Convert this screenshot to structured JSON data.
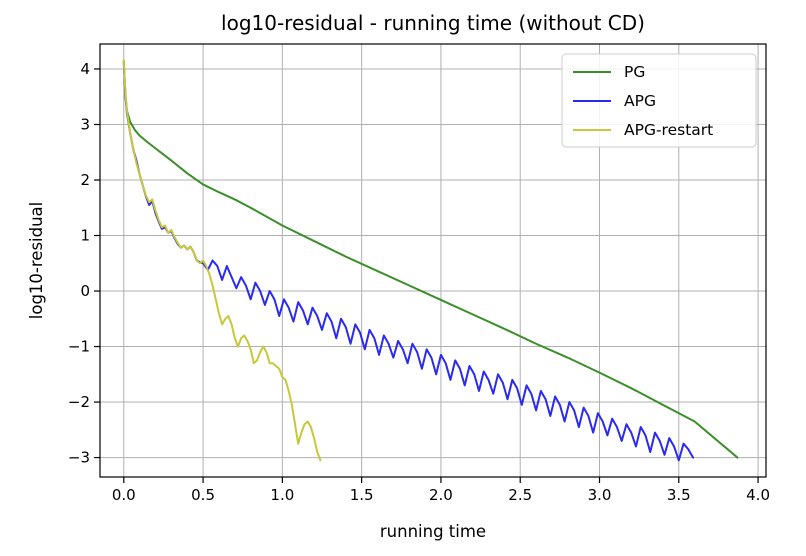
{
  "chart_data": {
    "type": "line",
    "title": "log10-residual - running time (without CD)",
    "xlabel": "running time",
    "ylabel": "log10-residual",
    "xlim": [
      -0.15,
      4.05
    ],
    "ylim": [
      -3.35,
      4.45
    ],
    "xticks": [
      0.0,
      0.5,
      1.0,
      1.5,
      2.0,
      2.5,
      3.0,
      3.5,
      4.0
    ],
    "xtick_labels": [
      "0.0",
      "0.5",
      "1.0",
      "1.5",
      "2.0",
      "2.5",
      "3.0",
      "3.5",
      "4.0"
    ],
    "yticks": [
      -3,
      -2,
      -1,
      0,
      1,
      2,
      3,
      4
    ],
    "ytick_labels": [
      "−3",
      "−2",
      "−1",
      "0",
      "1",
      "2",
      "3",
      "4"
    ],
    "grid": true,
    "legend": "top-right",
    "series": [
      {
        "name": "PG",
        "color": "#3a8f2a",
        "x": [
          0.0,
          0.01,
          0.02,
          0.04,
          0.07,
          0.1,
          0.15,
          0.2,
          0.3,
          0.4,
          0.5,
          0.6,
          0.7,
          0.8,
          1.0,
          1.2,
          1.4,
          1.6,
          1.8,
          2.0,
          2.2,
          2.4,
          2.6,
          2.8,
          3.0,
          3.2,
          3.4,
          3.6,
          3.87
        ],
        "y": [
          4.15,
          3.5,
          3.25,
          3.05,
          2.9,
          2.8,
          2.68,
          2.57,
          2.35,
          2.12,
          1.92,
          1.78,
          1.65,
          1.5,
          1.18,
          0.9,
          0.62,
          0.36,
          0.1,
          -0.16,
          -0.42,
          -0.68,
          -0.95,
          -1.2,
          -1.47,
          -1.75,
          -2.05,
          -2.35,
          -3.0
        ]
      },
      {
        "name": "APG",
        "color": "#2a2af0",
        "x": [
          0.0,
          0.01,
          0.02,
          0.04,
          0.06,
          0.08,
          0.1,
          0.12,
          0.14,
          0.16,
          0.18,
          0.2,
          0.22,
          0.24,
          0.26,
          0.28,
          0.3,
          0.32,
          0.34,
          0.36,
          0.38,
          0.4,
          0.42,
          0.44,
          0.46,
          0.48,
          0.5,
          0.53,
          0.56,
          0.59,
          0.62,
          0.65,
          0.68,
          0.71,
          0.74,
          0.77,
          0.8,
          0.83,
          0.86,
          0.89,
          0.92,
          0.95,
          0.98,
          1.01,
          1.04,
          1.07,
          1.1,
          1.13,
          1.16,
          1.19,
          1.22,
          1.25,
          1.28,
          1.31,
          1.34,
          1.37,
          1.4,
          1.43,
          1.46,
          1.49,
          1.52,
          1.55,
          1.58,
          1.61,
          1.64,
          1.67,
          1.7,
          1.73,
          1.76,
          1.79,
          1.82,
          1.85,
          1.88,
          1.91,
          1.94,
          1.97,
          2.0,
          2.03,
          2.06,
          2.09,
          2.12,
          2.15,
          2.18,
          2.21,
          2.24,
          2.27,
          2.3,
          2.33,
          2.36,
          2.39,
          2.42,
          2.45,
          2.48,
          2.51,
          2.54,
          2.57,
          2.6,
          2.63,
          2.66,
          2.69,
          2.72,
          2.75,
          2.78,
          2.81,
          2.84,
          2.87,
          2.9,
          2.93,
          2.96,
          2.99,
          3.02,
          3.05,
          3.08,
          3.11,
          3.14,
          3.17,
          3.2,
          3.23,
          3.26,
          3.29,
          3.32,
          3.35,
          3.38,
          3.41,
          3.44,
          3.47,
          3.5,
          3.53,
          3.56,
          3.59
        ],
        "y": [
          4.1,
          3.55,
          3.2,
          2.85,
          2.55,
          2.35,
          2.1,
          1.9,
          1.7,
          1.55,
          1.62,
          1.4,
          1.25,
          1.12,
          1.15,
          1.05,
          1.08,
          0.95,
          0.85,
          0.78,
          0.82,
          0.75,
          0.8,
          0.7,
          0.55,
          0.52,
          0.5,
          0.38,
          0.55,
          0.45,
          0.2,
          0.45,
          0.25,
          0.05,
          0.25,
          0.1,
          -0.15,
          0.15,
          0.0,
          -0.25,
          0.0,
          -0.15,
          -0.45,
          -0.15,
          -0.3,
          -0.55,
          -0.2,
          -0.35,
          -0.6,
          -0.3,
          -0.45,
          -0.7,
          -0.4,
          -0.55,
          -0.85,
          -0.5,
          -0.65,
          -0.95,
          -0.6,
          -0.75,
          -1.05,
          -0.7,
          -0.85,
          -1.15,
          -0.8,
          -0.95,
          -1.2,
          -0.9,
          -1.05,
          -1.3,
          -0.95,
          -1.1,
          -1.4,
          -1.05,
          -1.2,
          -1.5,
          -1.15,
          -1.3,
          -1.6,
          -1.25,
          -1.4,
          -1.7,
          -1.35,
          -1.5,
          -1.8,
          -1.45,
          -1.6,
          -1.85,
          -1.5,
          -1.65,
          -1.95,
          -1.6,
          -1.75,
          -2.05,
          -1.7,
          -1.85,
          -2.15,
          -1.8,
          -1.95,
          -2.25,
          -1.9,
          -2.05,
          -2.35,
          -2.0,
          -2.15,
          -2.45,
          -2.1,
          -2.25,
          -2.55,
          -2.2,
          -2.35,
          -2.6,
          -2.3,
          -2.45,
          -2.7,
          -2.4,
          -2.55,
          -2.8,
          -2.45,
          -2.6,
          -2.9,
          -2.55,
          -2.7,
          -2.95,
          -2.65,
          -2.8,
          -3.05,
          -2.75,
          -2.85,
          -3.0
        ]
      },
      {
        "name": "APG-restart",
        "color": "#c8c83c",
        "x": [
          0.0,
          0.01,
          0.02,
          0.04,
          0.06,
          0.08,
          0.1,
          0.12,
          0.14,
          0.16,
          0.18,
          0.2,
          0.22,
          0.24,
          0.26,
          0.28,
          0.3,
          0.32,
          0.34,
          0.36,
          0.38,
          0.4,
          0.42,
          0.44,
          0.46,
          0.48,
          0.5,
          0.52,
          0.54,
          0.56,
          0.58,
          0.6,
          0.62,
          0.64,
          0.66,
          0.68,
          0.7,
          0.72,
          0.74,
          0.76,
          0.78,
          0.8,
          0.82,
          0.84,
          0.86,
          0.88,
          0.9,
          0.92,
          0.94,
          0.96,
          0.98,
          1.0,
          1.02,
          1.04,
          1.06,
          1.08,
          1.1,
          1.12,
          1.14,
          1.16,
          1.18,
          1.2,
          1.22,
          1.24
        ],
        "y": [
          4.15,
          3.6,
          3.25,
          2.85,
          2.55,
          2.3,
          2.1,
          1.9,
          1.72,
          1.6,
          1.65,
          1.45,
          1.28,
          1.15,
          1.18,
          1.05,
          1.1,
          0.97,
          0.87,
          0.78,
          0.82,
          0.75,
          0.8,
          0.7,
          0.55,
          0.5,
          0.55,
          0.45,
          0.3,
          0.1,
          -0.15,
          -0.4,
          -0.6,
          -0.5,
          -0.45,
          -0.6,
          -0.85,
          -1.0,
          -0.85,
          -0.8,
          -0.9,
          -1.05,
          -1.3,
          -1.25,
          -1.1,
          -1.0,
          -1.1,
          -1.3,
          -1.3,
          -1.35,
          -1.4,
          -1.55,
          -1.6,
          -1.8,
          -2.05,
          -2.4,
          -2.75,
          -2.55,
          -2.4,
          -2.35,
          -2.45,
          -2.65,
          -2.9,
          -3.05
        ]
      }
    ]
  }
}
